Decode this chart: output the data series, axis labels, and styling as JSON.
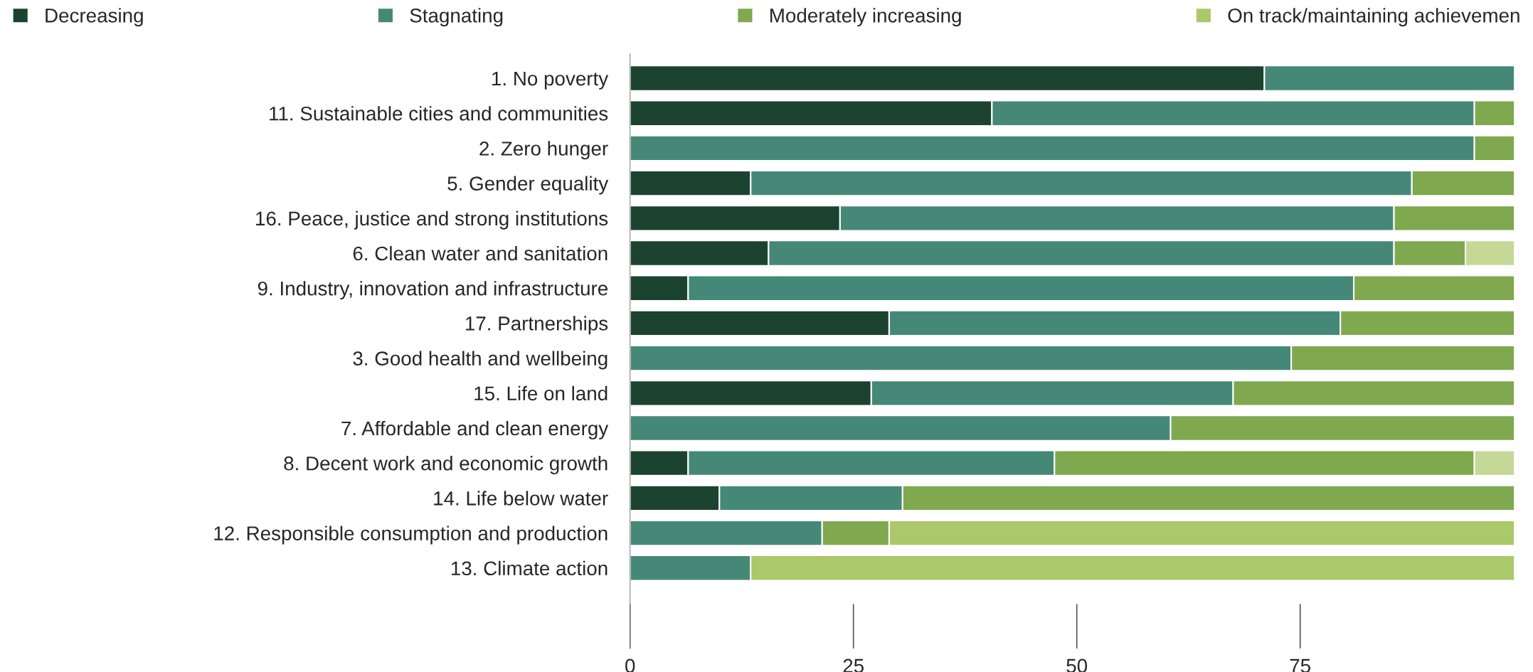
{
  "chart_data": {
    "type": "bar",
    "orientation": "horizontal",
    "stacked": true,
    "legend": "top",
    "grid": false,
    "categories": [
      "1. No poverty",
      "11. Sustainable cities and communities",
      "2. Zero hunger",
      "5. Gender equality",
      "16. Peace, justice and strong institutions",
      "6. Clean water and sanitation",
      "9. Industry, innovation and infrastructure",
      "17. Partnerships",
      "3. Good health and wellbeing",
      "15. Life on land",
      "7. Affordable and clean energy",
      "8. Decent work and economic growth",
      "14. Life below water",
      "12. Responsible consumption and production",
      "13. Climate action"
    ],
    "series": [
      {
        "name": "Decreasing",
        "color": "#1c4330",
        "values": [
          71,
          40.5,
          null,
          13.5,
          23.5,
          15.5,
          6.5,
          29,
          null,
          27,
          null,
          6.5,
          10,
          null,
          null
        ]
      },
      {
        "name": "Stagnating",
        "color": "#468877",
        "values": [
          28,
          54,
          94.5,
          74,
          62,
          70,
          74.5,
          50.5,
          74,
          40.5,
          60.5,
          41,
          20.5,
          21.5,
          13.5
        ]
      },
      {
        "name": "Moderately increasing",
        "color": "#7fa84f",
        "values": [
          null,
          4.5,
          4.5,
          11.5,
          13.5,
          8,
          18,
          19.5,
          25,
          31.5,
          38.5,
          47,
          68.5,
          7.5,
          null
        ]
      },
      {
        "name": "On track/maintaining achievemen",
        "color": "#abc86a",
        "values": [
          null,
          null,
          null,
          null,
          null,
          null,
          null,
          null,
          null,
          null,
          null,
          null,
          null,
          70,
          85.5
        ]
      },
      {
        "color": "#c5d896",
        "values": [
          null,
          null,
          null,
          null,
          null,
          5.5,
          null,
          null,
          null,
          null,
          null,
          4.5,
          null,
          null,
          null
        ]
      }
    ],
    "xlim": [
      0,
      99
    ],
    "xticks": [
      0,
      25,
      50,
      75
    ]
  }
}
